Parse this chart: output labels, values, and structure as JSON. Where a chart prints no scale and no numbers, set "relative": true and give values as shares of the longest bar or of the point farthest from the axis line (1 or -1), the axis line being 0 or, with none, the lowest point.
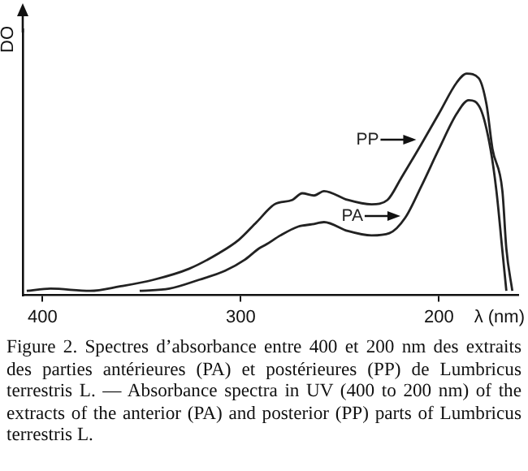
{
  "chart_data": {
    "type": "line",
    "relative": true,
    "ylabel": "DO",
    "xlabel": "λ (nm)",
    "xlim": [
      410,
      160
    ],
    "xticks": [
      400,
      300,
      200
    ],
    "grid": false,
    "legend": false,
    "marker": "none",
    "line_style": "solid",
    "series": [
      {
        "name": "PP",
        "color": "#222222",
        "x": [
          408,
          396,
          376,
          361,
          344,
          326,
          311,
          301,
          292,
          283,
          274,
          269,
          263,
          258,
          246,
          234,
          226,
          219,
          209,
          200,
          191,
          186,
          180,
          176,
          173,
          168,
          166,
          163
        ],
        "values": [
          0.02,
          0.03,
          0.02,
          0.04,
          0.07,
          0.12,
          0.19,
          0.25,
          0.33,
          0.41,
          0.43,
          0.46,
          0.45,
          0.47,
          0.43,
          0.41,
          0.43,
          0.53,
          0.68,
          0.82,
          0.96,
          1,
          0.98,
          0.86,
          0.66,
          0.47,
          0.21,
          0.02
        ]
      },
      {
        "name": "PA",
        "color": "#222222",
        "x": [
          351,
          336,
          321,
          308,
          298,
          291,
          287,
          280,
          271,
          264,
          258,
          246,
          234,
          225,
          217,
          209,
          200,
          191,
          185,
          179,
          174,
          171,
          168,
          166
        ],
        "values": [
          0.02,
          0.03,
          0.07,
          0.11,
          0.16,
          0.21,
          0.23,
          0.27,
          0.31,
          0.32,
          0.33,
          0.29,
          0.27,
          0.28,
          0.35,
          0.49,
          0.66,
          0.82,
          0.88,
          0.84,
          0.66,
          0.47,
          0.2,
          0.02
        ]
      }
    ],
    "annotations": [
      "Figure 2. Spectres d’absorbance entre 400 et 200 nm des extraits des parties antérieures (PA) et postérieures (PP) de Lumbricus terrestris L. — Absorbance spectra in UV (400 to 200 nm) of the extracts of the anterior (PA) and posterior (PP) parts of Lumbricus terrestris L."
    ]
  }
}
